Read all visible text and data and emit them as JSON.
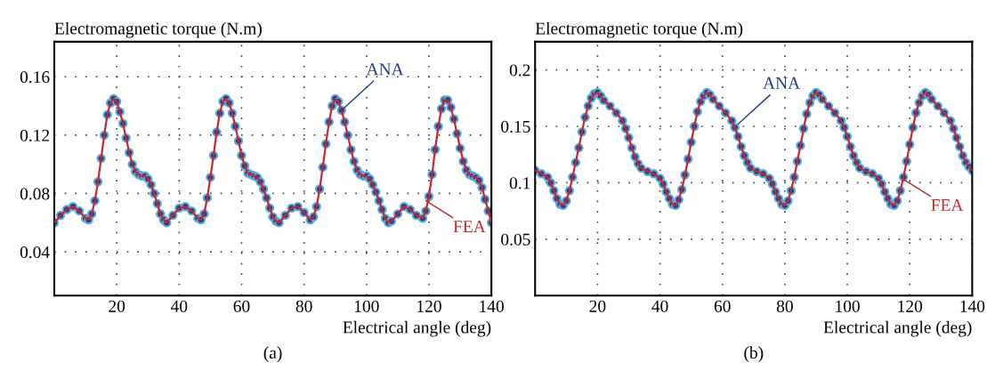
{
  "chart_data": [
    {
      "type": "line",
      "ylabel": "Electromagnetic torque (N.m)",
      "xlabel": "Electrical angle (deg)",
      "xlim": [
        0,
        140
      ],
      "ylim": [
        0.01,
        0.184
      ],
      "xticks": [
        20,
        40,
        60,
        80,
        100,
        120,
        140
      ],
      "yticks": [
        0.04,
        0.08,
        0.12,
        0.16
      ],
      "grid": true,
      "legend": false,
      "x": [
        0,
        2,
        4,
        6,
        8,
        10,
        11,
        12,
        13,
        14,
        15,
        16,
        17,
        18,
        19,
        20,
        21,
        22,
        23,
        24,
        25,
        26,
        27,
        28,
        29,
        30,
        31,
        32,
        33,
        34,
        35,
        36,
        38,
        40,
        42,
        44,
        46,
        47,
        48,
        49,
        50,
        51,
        52,
        53,
        54,
        55,
        56,
        57,
        58,
        59,
        60,
        61,
        62,
        63,
        64,
        65,
        66,
        67,
        68,
        69,
        70,
        71,
        72,
        74,
        76,
        78,
        80,
        82,
        83,
        84,
        85,
        86,
        87,
        88,
        89,
        90,
        91,
        92,
        93,
        94,
        95,
        96,
        97,
        98,
        99,
        100,
        101,
        102,
        103,
        104,
        105,
        106,
        107,
        108,
        110,
        112,
        114,
        116,
        118,
        119,
        120,
        121,
        122,
        123,
        124,
        125,
        126,
        127,
        128,
        129,
        130,
        131,
        132,
        133,
        134,
        135,
        136,
        137,
        138,
        139,
        140
      ],
      "series": [
        {
          "type": "scatter",
          "marker": "circle",
          "color": "#1f3f7a",
          "values": [
            0.06,
            0.065,
            0.069,
            0.071,
            0.068,
            0.063,
            0.062,
            0.066,
            0.075,
            0.088,
            0.104,
            0.12,
            0.134,
            0.142,
            0.145,
            0.143,
            0.136,
            0.128,
            0.118,
            0.108,
            0.1,
            0.095,
            0.093,
            0.092,
            0.092,
            0.09,
            0.086,
            0.08,
            0.073,
            0.066,
            0.062,
            0.06,
            0.065,
            0.07,
            0.071,
            0.068,
            0.063,
            0.062,
            0.066,
            0.077,
            0.091,
            0.106,
            0.122,
            0.135,
            0.143,
            0.145,
            0.142,
            0.135,
            0.126,
            0.116,
            0.106,
            0.099,
            0.094,
            0.093,
            0.092,
            0.091,
            0.088,
            0.083,
            0.077,
            0.07,
            0.064,
            0.061,
            0.06,
            0.065,
            0.07,
            0.071,
            0.067,
            0.062,
            0.064,
            0.071,
            0.083,
            0.098,
            0.114,
            0.129,
            0.14,
            0.145,
            0.143,
            0.137,
            0.129,
            0.12,
            0.11,
            0.102,
            0.096,
            0.093,
            0.092,
            0.092,
            0.09,
            0.086,
            0.081,
            0.075,
            0.069,
            0.063,
            0.06,
            0.061,
            0.066,
            0.071,
            0.069,
            0.065,
            0.063,
            0.068,
            0.078,
            0.093,
            0.11,
            0.126,
            0.138,
            0.144,
            0.144,
            0.139,
            0.131,
            0.121,
            0.111,
            0.102,
            0.096,
            0.093,
            0.092,
            0.091,
            0.089,
            0.084,
            0.076,
            0.068,
            0.06
          ]
        },
        {
          "line_style": "solid",
          "color": "#c8282d",
          "values": [
            0.06,
            0.065,
            0.069,
            0.071,
            0.068,
            0.063,
            0.062,
            0.066,
            0.075,
            0.088,
            0.104,
            0.12,
            0.134,
            0.142,
            0.145,
            0.143,
            0.136,
            0.128,
            0.118,
            0.108,
            0.1,
            0.095,
            0.093,
            0.092,
            0.092,
            0.09,
            0.086,
            0.08,
            0.073,
            0.066,
            0.062,
            0.06,
            0.065,
            0.07,
            0.071,
            0.068,
            0.063,
            0.062,
            0.066,
            0.077,
            0.091,
            0.106,
            0.122,
            0.135,
            0.143,
            0.145,
            0.142,
            0.135,
            0.126,
            0.116,
            0.106,
            0.099,
            0.094,
            0.093,
            0.092,
            0.091,
            0.088,
            0.083,
            0.077,
            0.07,
            0.064,
            0.061,
            0.06,
            0.065,
            0.07,
            0.071,
            0.067,
            0.062,
            0.064,
            0.071,
            0.083,
            0.098,
            0.114,
            0.129,
            0.14,
            0.145,
            0.143,
            0.137,
            0.129,
            0.12,
            0.11,
            0.102,
            0.096,
            0.093,
            0.092,
            0.092,
            0.09,
            0.086,
            0.081,
            0.075,
            0.069,
            0.063,
            0.06,
            0.061,
            0.066,
            0.071,
            0.069,
            0.065,
            0.063,
            0.068,
            0.078,
            0.093,
            0.11,
            0.126,
            0.138,
            0.144,
            0.144,
            0.139,
            0.131,
            0.121,
            0.111,
            0.102,
            0.096,
            0.093,
            0.092,
            0.091,
            0.089,
            0.084,
            0.076,
            0.068,
            0.06
          ]
        }
      ],
      "annotations": [
        {
          "text": "ANA",
          "x": 92,
          "y": 0.137
        },
        {
          "text": "FEA",
          "x": 119,
          "y": 0.075
        },
        "(a)"
      ]
    },
    {
      "type": "line",
      "ylabel": "Electromagnetic torque (N.m)",
      "xlabel": "Electrical angle (deg)",
      "xlim": [
        0,
        140
      ],
      "ylim": [
        0,
        0.225
      ],
      "xticks": [
        20,
        40,
        60,
        80,
        100,
        120,
        140
      ],
      "yticks": [
        0.05,
        0.1,
        0.15,
        0.2
      ],
      "grid": true,
      "legend": false,
      "x": [
        0,
        2,
        4,
        5,
        6,
        7,
        8,
        9,
        10,
        11,
        12,
        13,
        14,
        15,
        16,
        17,
        18,
        19,
        20,
        21,
        22,
        24,
        26,
        28,
        29,
        30,
        31,
        32,
        33,
        34,
        36,
        38,
        40,
        41,
        42,
        43,
        44,
        45,
        46,
        47,
        48,
        49,
        50,
        51,
        52,
        53,
        54,
        55,
        56,
        57,
        59,
        61,
        63,
        64,
        65,
        66,
        67,
        68,
        69,
        71,
        73,
        75,
        76,
        77,
        78,
        79,
        80,
        81,
        82,
        83,
        84,
        85,
        86,
        87,
        88,
        89,
        90,
        91,
        92,
        94,
        96,
        98,
        99,
        100,
        101,
        102,
        103,
        104,
        106,
        108,
        110,
        111,
        112,
        113,
        114,
        115,
        116,
        117,
        118,
        119,
        120,
        121,
        122,
        123,
        124,
        125,
        126,
        127,
        129,
        131,
        133,
        134,
        135,
        136,
        137,
        138,
        139,
        140
      ],
      "series": [
        {
          "type": "scatter",
          "marker": "circle",
          "color": "#1f3f7a",
          "values": [
            0.111,
            0.108,
            0.105,
            0.1,
            0.093,
            0.086,
            0.081,
            0.08,
            0.084,
            0.093,
            0.105,
            0.118,
            0.131,
            0.145,
            0.158,
            0.168,
            0.175,
            0.179,
            0.18,
            0.177,
            0.173,
            0.168,
            0.162,
            0.155,
            0.148,
            0.14,
            0.131,
            0.123,
            0.117,
            0.113,
            0.11,
            0.108,
            0.104,
            0.099,
            0.092,
            0.086,
            0.081,
            0.08,
            0.085,
            0.094,
            0.107,
            0.121,
            0.136,
            0.15,
            0.163,
            0.172,
            0.177,
            0.18,
            0.178,
            0.174,
            0.168,
            0.162,
            0.155,
            0.149,
            0.141,
            0.132,
            0.124,
            0.118,
            0.113,
            0.11,
            0.108,
            0.104,
            0.099,
            0.092,
            0.086,
            0.081,
            0.08,
            0.084,
            0.093,
            0.105,
            0.119,
            0.133,
            0.148,
            0.161,
            0.171,
            0.177,
            0.18,
            0.178,
            0.174,
            0.168,
            0.162,
            0.155,
            0.149,
            0.141,
            0.132,
            0.124,
            0.118,
            0.113,
            0.11,
            0.108,
            0.104,
            0.099,
            0.092,
            0.086,
            0.081,
            0.08,
            0.084,
            0.093,
            0.105,
            0.119,
            0.134,
            0.149,
            0.162,
            0.171,
            0.177,
            0.18,
            0.178,
            0.174,
            0.168,
            0.162,
            0.155,
            0.148,
            0.14,
            0.132,
            0.124,
            0.118,
            0.114,
            0.111
          ]
        },
        {
          "line_style": "solid",
          "color": "#c8282d",
          "values": [
            0.111,
            0.108,
            0.105,
            0.1,
            0.093,
            0.086,
            0.081,
            0.08,
            0.084,
            0.093,
            0.105,
            0.118,
            0.131,
            0.145,
            0.158,
            0.168,
            0.175,
            0.179,
            0.18,
            0.177,
            0.173,
            0.168,
            0.162,
            0.155,
            0.148,
            0.14,
            0.131,
            0.123,
            0.117,
            0.113,
            0.11,
            0.108,
            0.104,
            0.099,
            0.092,
            0.086,
            0.081,
            0.08,
            0.085,
            0.094,
            0.107,
            0.121,
            0.136,
            0.15,
            0.163,
            0.172,
            0.177,
            0.18,
            0.178,
            0.174,
            0.168,
            0.162,
            0.155,
            0.149,
            0.141,
            0.132,
            0.124,
            0.118,
            0.113,
            0.11,
            0.108,
            0.104,
            0.099,
            0.092,
            0.086,
            0.081,
            0.08,
            0.084,
            0.093,
            0.105,
            0.119,
            0.133,
            0.148,
            0.161,
            0.171,
            0.177,
            0.18,
            0.178,
            0.174,
            0.168,
            0.162,
            0.155,
            0.149,
            0.141,
            0.132,
            0.124,
            0.118,
            0.113,
            0.11,
            0.108,
            0.104,
            0.099,
            0.092,
            0.086,
            0.081,
            0.08,
            0.084,
            0.093,
            0.105,
            0.119,
            0.134,
            0.149,
            0.162,
            0.171,
            0.177,
            0.18,
            0.178,
            0.174,
            0.168,
            0.162,
            0.155,
            0.148,
            0.14,
            0.132,
            0.124,
            0.118,
            0.114,
            0.111
          ]
        }
      ],
      "annotations": [
        {
          "text": "ANA",
          "x": 65,
          "y": 0.152
        },
        {
          "text": "FEA",
          "x": 118,
          "y": 0.103
        },
        "(b)"
      ]
    }
  ]
}
